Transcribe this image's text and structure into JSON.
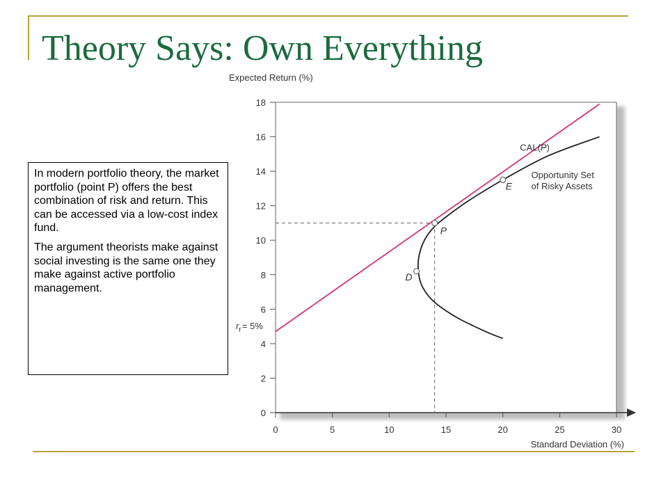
{
  "slide": {
    "title": "Theory Says:  Own Everything",
    "colors": {
      "title": "#1b6b3f",
      "decoration": "#b9a23a"
    }
  },
  "textbox": {
    "paragraph1": "In modern portfolio theory, the market portfolio (point P) offers the best combination of risk and return.  This can be accessed via a low-cost index fund.",
    "paragraph2": "The argument theorists make against social investing is the same one they make against active portfolio management."
  },
  "chart_data": {
    "type": "line",
    "xlabel": "Standard Deviation (%)",
    "ylabel": "Expected Return (%)",
    "xlim": [
      0,
      30
    ],
    "ylim": [
      0,
      18
    ],
    "x_ticks": [
      0,
      5,
      10,
      15,
      20,
      25,
      30
    ],
    "y_ticks": [
      0,
      2,
      4,
      6,
      8,
      10,
      12,
      14,
      16,
      18
    ],
    "grid": false,
    "rf_label": {
      "sub": "f",
      "text": "= 5%",
      "y": 5
    },
    "series": [
      {
        "name": "CAL(P)",
        "color": "#d6327a",
        "x": [
          0,
          28.5
        ],
        "y": [
          4.7,
          17.9
        ]
      },
      {
        "name": "Opportunity Set of Risky Assets",
        "color": "#222222",
        "x": [
          28.5,
          24,
          20,
          17,
          15.3,
          14,
          13.1,
          12.6,
          12.6,
          13,
          14,
          16,
          18.5,
          20
        ],
        "y": [
          16.0,
          14.9,
          13.5,
          12.3,
          11.5,
          10.8,
          10.0,
          9.0,
          8.0,
          7.2,
          6.4,
          5.5,
          4.7,
          4.3
        ]
      }
    ],
    "annotations": [
      {
        "label": "CAL(",
        "label_italic": "P",
        "label_end": ")",
        "at": [
          21.5,
          15.2
        ]
      },
      {
        "label_line1": "Opportunity Set",
        "label_line2": "of Risky Assets",
        "at": [
          22.5,
          13.6
        ]
      }
    ],
    "points": [
      {
        "label": "P",
        "x": 14,
        "y": 11.0
      },
      {
        "label": "E",
        "x": 20,
        "y": 13.5
      },
      {
        "label": "D",
        "x": 12.4,
        "y": 8.2
      }
    ],
    "reference_lines": {
      "x": 14,
      "y": 11.0
    }
  }
}
